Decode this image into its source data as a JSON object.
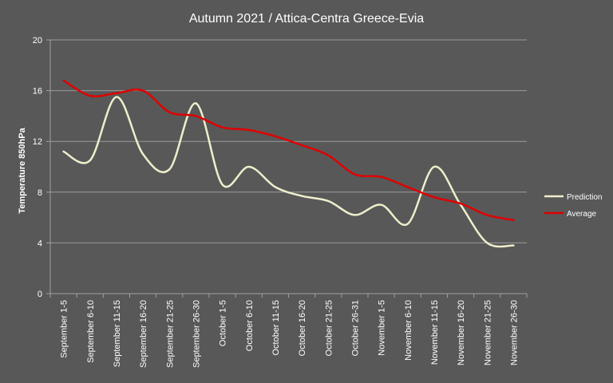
{
  "chart_data": {
    "type": "line",
    "title": "Autumn 2021 / Attica-Centra Greece-Evia",
    "xlabel": "",
    "ylabel": "Temperature 850hPa",
    "ylim": [
      0,
      20
    ],
    "yticks": [
      0,
      4,
      8,
      12,
      16,
      20
    ],
    "grid": true,
    "legend_position": "right",
    "categories": [
      "September 1-5",
      "September 6-10",
      "September 11-15",
      "September 16-20",
      "September 21-25",
      "September 26-30",
      "October 1-5",
      "October 6-10",
      "October 11-15",
      "October 16-20",
      "October 21-25",
      "October 26-31",
      "November 1-5",
      "November 6-10",
      "November 11-15",
      "November 16-20",
      "November 21-25",
      "November 26-30"
    ],
    "series": [
      {
        "name": "Prediction",
        "color": "#eeeecc",
        "values": [
          11.2,
          10.5,
          15.5,
          11.0,
          9.8,
          15.0,
          8.6,
          10.0,
          8.4,
          7.7,
          7.3,
          6.2,
          7.0,
          5.5,
          10.0,
          7.0,
          4.0,
          3.8
        ]
      },
      {
        "name": "Average",
        "color": "#e00000",
        "values": [
          16.8,
          15.6,
          15.8,
          16.0,
          14.3,
          14.0,
          13.1,
          12.9,
          12.4,
          11.7,
          10.9,
          9.4,
          9.2,
          8.4,
          7.6,
          7.1,
          6.2,
          5.8
        ]
      }
    ]
  }
}
